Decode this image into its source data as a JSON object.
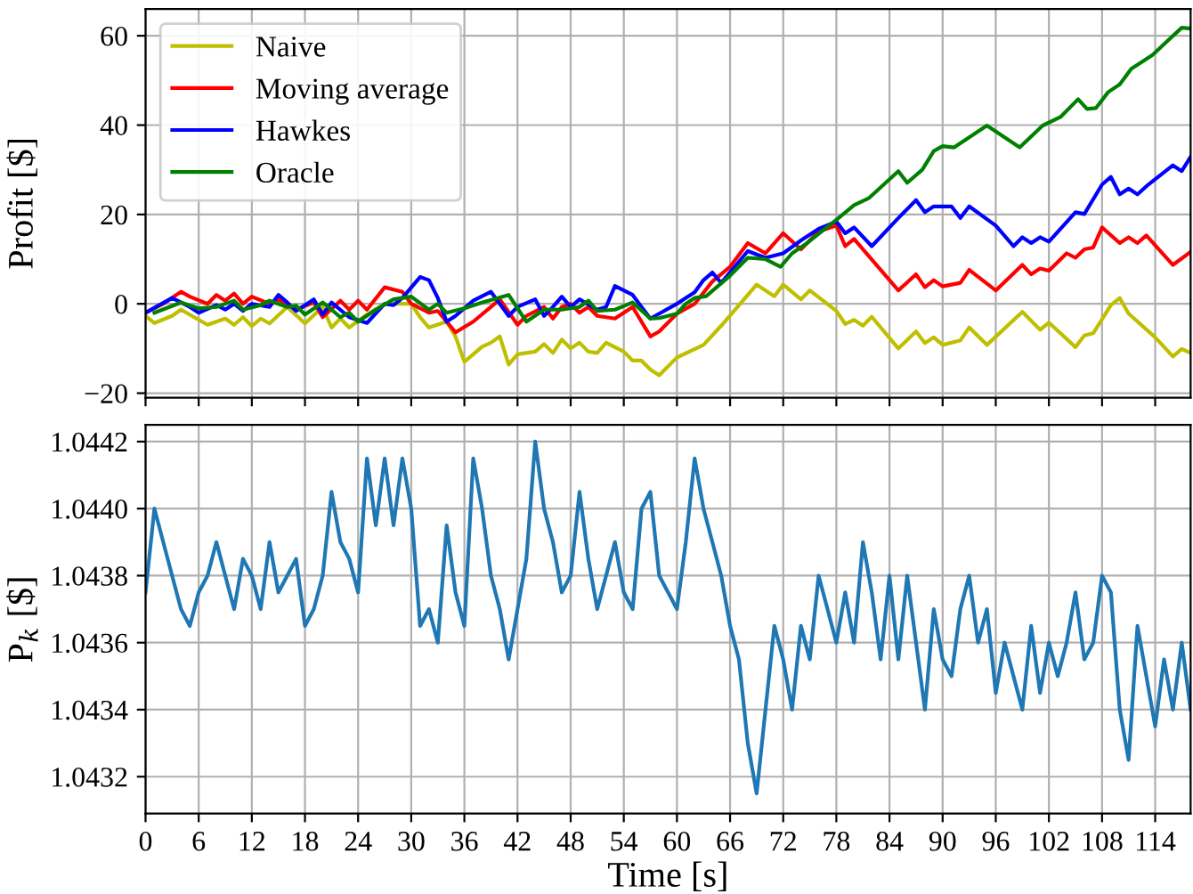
{
  "chart_data": [
    {
      "type": "line",
      "ylabel": "Profit [$]",
      "legend": "top left",
      "grid": true,
      "tick_labels": "y",
      "xlim": [
        0,
        118
      ],
      "xticks": [
        0,
        6,
        12,
        18,
        24,
        30,
        36,
        42,
        48,
        54,
        60,
        66,
        72,
        78,
        84,
        90,
        96,
        102,
        108,
        114
      ],
      "ylim": [
        -21,
        66
      ],
      "yticks": [
        {
          "value": -20,
          "label": "−20"
        },
        0,
        20,
        40,
        60
      ],
      "series": [
        {
          "name": "Naive",
          "color": "#bfbf00",
          "x": [
            0,
            1,
            3,
            4,
            7,
            9,
            10,
            11,
            12,
            13,
            14,
            16,
            18,
            20,
            21,
            22,
            23,
            25,
            27,
            30,
            31,
            32,
            34,
            35,
            36,
            37,
            38,
            39,
            40,
            41,
            42,
            44,
            45,
            46,
            47,
            48,
            49,
            50,
            51,
            52,
            54,
            55,
            56,
            57,
            58,
            60,
            63,
            65,
            69,
            71,
            72,
            74,
            75,
            78,
            79,
            80,
            81,
            82,
            85,
            87,
            88,
            89,
            90,
            92,
            93,
            95,
            99,
            101,
            102,
            105,
            106,
            107,
            109,
            110,
            111,
            114,
            116,
            117,
            118
          ],
          "values": [
            -2.7,
            -4.3,
            -2.7,
            -1.3,
            -4.7,
            -3.3,
            -4.7,
            -3,
            -5,
            -3.3,
            -4.4,
            -0.7,
            -4.4,
            -0.7,
            -5.3,
            -3.3,
            -5.3,
            -2.4,
            0,
            0,
            -3,
            -5.3,
            -4,
            -7.3,
            -13,
            -11.3,
            -9.6,
            -8.7,
            -7.3,
            -13.6,
            -11.3,
            -10.7,
            -9,
            -11,
            -8,
            -10,
            -8.7,
            -10.7,
            -11,
            -8.7,
            -10.7,
            -12.7,
            -12.7,
            -14.7,
            -16,
            -12,
            -9.2,
            -4.9,
            4.3,
            1.7,
            4.3,
            1,
            3,
            -1.6,
            -4.5,
            -3.6,
            -4.9,
            -2.9,
            -10,
            -6.2,
            -8.8,
            -7.5,
            -9.2,
            -8.2,
            -5.3,
            -9.2,
            -1.8,
            -5.8,
            -4.2,
            -9.7,
            -7.1,
            -6.6,
            -0.3,
            1.3,
            -2.2,
            -7.5,
            -11.8,
            -10.1,
            -11
          ]
        },
        {
          "name": "Moving average",
          "color": "#ff0000",
          "x": [
            0,
            2,
            4,
            5,
            7,
            8,
            9,
            10,
            11,
            12,
            14,
            15,
            17,
            19,
            20,
            22,
            23,
            24,
            25,
            27,
            29,
            30,
            32,
            33,
            35,
            37,
            39,
            40,
            42,
            43,
            45,
            46,
            47,
            48,
            49,
            50,
            51,
            53,
            55,
            57,
            58,
            60,
            62,
            64,
            66,
            68,
            70,
            72,
            74,
            76,
            78,
            79,
            80,
            85,
            87,
            88,
            89,
            90,
            92,
            93,
            96,
            99,
            100,
            101,
            102,
            104,
            105,
            106,
            107,
            108,
            110,
            111,
            112,
            113,
            116,
            118
          ],
          "values": [
            -2,
            0,
            2.7,
            1.6,
            0,
            2,
            0.7,
            2.3,
            0,
            1.6,
            0,
            1,
            -1.3,
            0.3,
            -3,
            0.7,
            -1.3,
            0.7,
            -1.3,
            3.7,
            2.7,
            0,
            -2,
            -1.6,
            -6.4,
            -4,
            -0.7,
            1,
            -4.7,
            -2.7,
            -0.7,
            -3.3,
            -0.7,
            0,
            -2,
            -0.7,
            -2.7,
            -3.3,
            -0.7,
            -7.3,
            -6.2,
            -2.2,
            0,
            5,
            8.3,
            13.6,
            11.3,
            15.8,
            12.2,
            16.2,
            17.5,
            12.9,
            14.5,
            3,
            6.6,
            3.7,
            5.3,
            3.9,
            4.7,
            7.6,
            3,
            8.7,
            6.6,
            7.9,
            7.4,
            11.3,
            10.3,
            12.2,
            12.6,
            17.1,
            13.6,
            14.9,
            13.6,
            15.3,
            8.7,
            11.6
          ]
        },
        {
          "name": "Hawkes",
          "color": "#0000ff",
          "x": [
            0,
            3,
            5,
            6,
            8,
            9,
            10,
            11,
            12,
            14,
            15,
            16,
            17,
            19,
            20,
            21,
            23,
            25,
            27,
            28,
            29,
            31,
            32,
            33,
            34,
            35,
            37,
            39,
            41,
            42,
            44,
            45,
            46,
            47,
            48,
            49,
            51,
            52,
            53,
            55,
            56,
            57,
            58,
            60,
            62,
            63,
            64,
            65,
            68,
            70,
            72,
            74,
            76,
            78,
            79,
            80,
            82,
            85,
            87,
            88,
            89,
            91,
            92,
            93,
            96,
            98,
            99,
            100,
            101,
            102,
            105,
            106,
            108,
            109,
            110,
            111,
            112,
            113,
            116,
            117,
            118
          ],
          "values": [
            -2,
            1.3,
            -0.7,
            -2,
            -0.3,
            -1.3,
            0,
            -1.6,
            0,
            -0.7,
            2,
            0.3,
            -1.6,
            1,
            -2.4,
            0.3,
            -3,
            -4.3,
            0,
            -0.3,
            1.3,
            6,
            5.3,
            1.3,
            -4,
            -2.7,
            0.7,
            2.7,
            -2.7,
            -0.7,
            1,
            -2.7,
            -0.7,
            1.6,
            -0.7,
            1,
            -1.3,
            -0.7,
            4,
            2,
            -0.7,
            -3.3,
            -2.2,
            0,
            2.6,
            5.3,
            7,
            4.7,
            11.8,
            10.3,
            11.3,
            14.2,
            16.8,
            18.4,
            15.8,
            17.1,
            12.9,
            19.2,
            23.2,
            20.5,
            21.8,
            21.8,
            19.2,
            21.8,
            17.5,
            12.9,
            14.9,
            13.6,
            14.9,
            13.9,
            20.5,
            20.1,
            26.7,
            28.4,
            24.5,
            25.8,
            24.5,
            26.3,
            31,
            29.7,
            32.9
          ]
        },
        {
          "name": "Oracle",
          "color": "#008000",
          "x": [
            1,
            4,
            6,
            8,
            10,
            11,
            13,
            14,
            16,
            17,
            18,
            20,
            21,
            22,
            23,
            24,
            26,
            28,
            30,
            32,
            33,
            34,
            36,
            38,
            41,
            43,
            45,
            47,
            49,
            50,
            51,
            53,
            55,
            57,
            58,
            60,
            61,
            62,
            63.3,
            66,
            68,
            70,
            71.7,
            73,
            74.7,
            78,
            80,
            81.7,
            85,
            86,
            87.7,
            89,
            90,
            91.3,
            95,
            98.7,
            101.3,
            103.3,
            105.3,
            106.3,
            107.3,
            108.7,
            110,
            111.3,
            113.7,
            115.3,
            117,
            118
          ],
          "values": [
            -2,
            0.3,
            -1,
            -0.7,
            0.7,
            -1.3,
            -0.3,
            0.7,
            -0.7,
            -0.4,
            -2.4,
            0.3,
            -1.3,
            -3,
            -2,
            -4,
            -1.3,
            1,
            1.6,
            -1.3,
            0,
            -2,
            -1,
            0.3,
            2,
            -4,
            -1.3,
            -1.3,
            -0.7,
            0.7,
            -1.6,
            -1.3,
            0.3,
            -3.3,
            -3.2,
            -2.2,
            0,
            1.3,
            1.7,
            6.3,
            10.3,
            10,
            8.3,
            11.3,
            13.6,
            18.8,
            22.1,
            23.7,
            29.7,
            27.1,
            30,
            34.2,
            35.3,
            35,
            39.9,
            35,
            39.9,
            41.8,
            45.8,
            43.6,
            43.8,
            47.4,
            49.1,
            52.6,
            55.7,
            58.7,
            61.8,
            61.6
          ]
        }
      ]
    },
    {
      "type": "line",
      "xlabel": "Time [s]",
      "ylabel": "P$_{k}$ [$]",
      "grid": true,
      "xlim": [
        0,
        118
      ],
      "xticks": [
        0,
        6,
        12,
        18,
        24,
        30,
        36,
        42,
        48,
        54,
        60,
        66,
        72,
        78,
        84,
        90,
        96,
        102,
        108,
        114
      ],
      "ylim": [
        1.04309,
        1.04425
      ],
      "yticks": [
        1.0432,
        1.0434,
        1.0436,
        1.0438,
        {
          "value": 1.044,
          "label": "1.0440"
        },
        1.0442
      ],
      "series": [
        {
          "color": "#1f77b4",
          "x": [
            0,
            1,
            2,
            3,
            4,
            5,
            6,
            7,
            8,
            9,
            10,
            11,
            12,
            13,
            14,
            15,
            16,
            17,
            18,
            19,
            20,
            21,
            22,
            23,
            24,
            25,
            26,
            27,
            28,
            29,
            30,
            31,
            32,
            33,
            34,
            35,
            36,
            37,
            38,
            39,
            40,
            41,
            42,
            43,
            44,
            45,
            46,
            47,
            48,
            49,
            50,
            51,
            52,
            53,
            54,
            55,
            56,
            57,
            58,
            59,
            60,
            61,
            62,
            63,
            64,
            65,
            66,
            67,
            68,
            69,
            70,
            71,
            72,
            73,
            74,
            75,
            76,
            77,
            78,
            79,
            80,
            81,
            82,
            83,
            84,
            85,
            86,
            87,
            88,
            89,
            90,
            91,
            92,
            93,
            94,
            95,
            96,
            97,
            98,
            99,
            100,
            101,
            102,
            103,
            104,
            105,
            106,
            107,
            108,
            109,
            110,
            111,
            112,
            113,
            114,
            115,
            116,
            117,
            118
          ],
          "values": [
            1.04375,
            1.044,
            1.0439,
            1.0438,
            1.0437,
            1.04365,
            1.04375,
            1.0438,
            1.0439,
            1.0438,
            1.0437,
            1.04385,
            1.0438,
            1.0437,
            1.0439,
            1.04375,
            1.0438,
            1.04385,
            1.04365,
            1.0437,
            1.0438,
            1.04405,
            1.0439,
            1.04385,
            1.04375,
            1.04415,
            1.04395,
            1.04415,
            1.04395,
            1.04415,
            1.044,
            1.04365,
            1.0437,
            1.0436,
            1.04395,
            1.04375,
            1.04365,
            1.04415,
            1.044,
            1.0438,
            1.0437,
            1.04355,
            1.0437,
            1.04385,
            1.0442,
            1.044,
            1.0439,
            1.04375,
            1.0438,
            1.04405,
            1.04385,
            1.0437,
            1.0438,
            1.0439,
            1.04375,
            1.0437,
            1.044,
            1.04405,
            1.0438,
            1.04375,
            1.0437,
            1.0439,
            1.04415,
            1.044,
            1.0439,
            1.0438,
            1.04365,
            1.04355,
            1.0433,
            1.04315,
            1.0434,
            1.04365,
            1.04355,
            1.0434,
            1.04365,
            1.04355,
            1.0438,
            1.0437,
            1.0436,
            1.04375,
            1.0436,
            1.0439,
            1.04375,
            1.04355,
            1.0438,
            1.04355,
            1.0438,
            1.0436,
            1.0434,
            1.0437,
            1.04355,
            1.0435,
            1.0437,
            1.0438,
            1.0436,
            1.0437,
            1.04345,
            1.0436,
            1.0435,
            1.0434,
            1.04365,
            1.04345,
            1.0436,
            1.0435,
            1.0436,
            1.04375,
            1.04355,
            1.0436,
            1.0438,
            1.04375,
            1.0434,
            1.04325,
            1.04365,
            1.0435,
            1.04335,
            1.04355,
            1.0434,
            1.0436,
            1.0434
          ]
        }
      ]
    }
  ]
}
